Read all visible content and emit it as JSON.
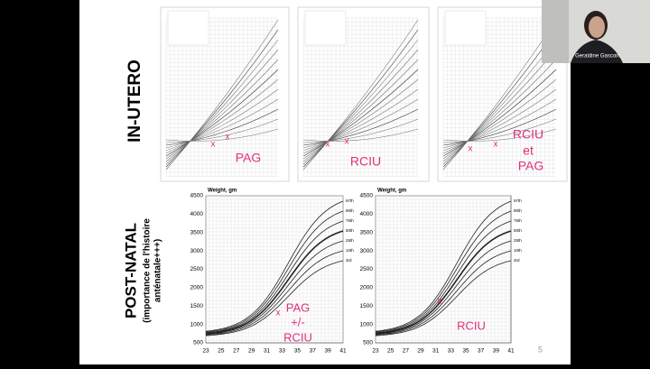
{
  "meeting": {
    "participant_name": "Geraldine Gascoin"
  },
  "slide": {
    "page_number": "5",
    "in_utero": {
      "label": "IN-UTERO",
      "charts": [
        {
          "annotation": [
            "PAG"
          ]
        },
        {
          "annotation": [
            "RCIU"
          ]
        },
        {
          "annotation": [
            "RCIU",
            "et",
            "PAG"
          ]
        }
      ]
    },
    "post_natal": {
      "label": "POST-NATAL",
      "note": [
        "(importance de l'histoire",
        "anténatale+++)"
      ],
      "axis_title": "Weight, gm",
      "yticks": [
        4500,
        4000,
        3500,
        3000,
        2500,
        2000,
        1500,
        1000,
        500
      ],
      "xticks": [
        23,
        25,
        27,
        29,
        31,
        33,
        35,
        37,
        39,
        41
      ],
      "curve_labels": [
        "97th",
        "90th",
        "75th",
        "50th",
        "25th",
        "10th",
        "3rd"
      ],
      "charts": [
        {
          "annotation": [
            "PAG",
            "+/-",
            "RCIU"
          ]
        },
        {
          "annotation": [
            "RCIU"
          ]
        }
      ]
    },
    "marker": "x"
  }
}
